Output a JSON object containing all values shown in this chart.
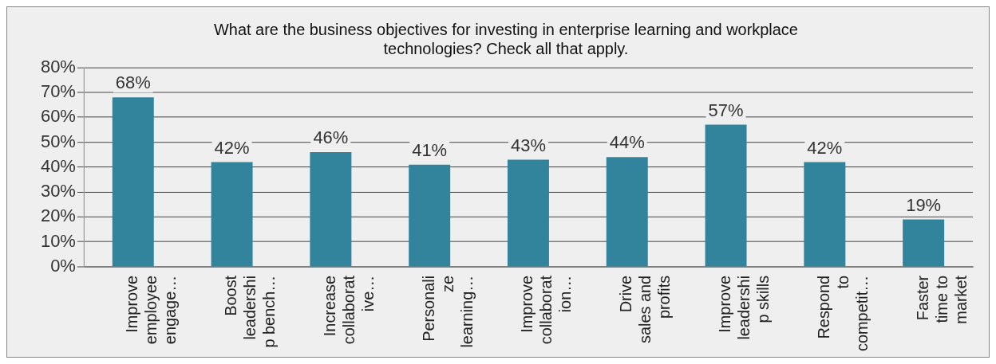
{
  "chart_data": {
    "type": "bar",
    "title": "What are the business objectives for investing in enterprise learning and workplace technologies? Check all that apply.",
    "categories": [
      "Improve\nemployee\nengage…",
      "Boost\nleadershi\np bench…",
      "Increase\ncollaborat\nive…",
      "Personali\nze\nlearning…",
      "Improve\ncollaborat\nion…",
      "Drive\nsales and\nprofits",
      "Improve\nleadershi\np skills",
      "Respond\nto\ncompetit…",
      "Faster\ntime to\nmarket"
    ],
    "values": [
      68,
      42,
      46,
      41,
      43,
      44,
      57,
      42,
      19
    ],
    "value_labels": [
      "68%",
      "42%",
      "46%",
      "41%",
      "43%",
      "44%",
      "57%",
      "42%",
      "19%"
    ],
    "color": "#31849b",
    "ylim": [
      0,
      80
    ],
    "yticks": [
      {
        "value": 0,
        "label": "0%"
      },
      {
        "value": 10,
        "label": "10%"
      },
      {
        "value": 20,
        "label": "20%"
      },
      {
        "value": 30,
        "label": "30%"
      },
      {
        "value": 40,
        "label": "40%"
      },
      {
        "value": 50,
        "label": "50%"
      },
      {
        "value": 60,
        "label": "60%"
      },
      {
        "value": 70,
        "label": "70%"
      },
      {
        "value": 80,
        "label": "80%"
      }
    ],
    "grid": "y",
    "legend": false
  }
}
